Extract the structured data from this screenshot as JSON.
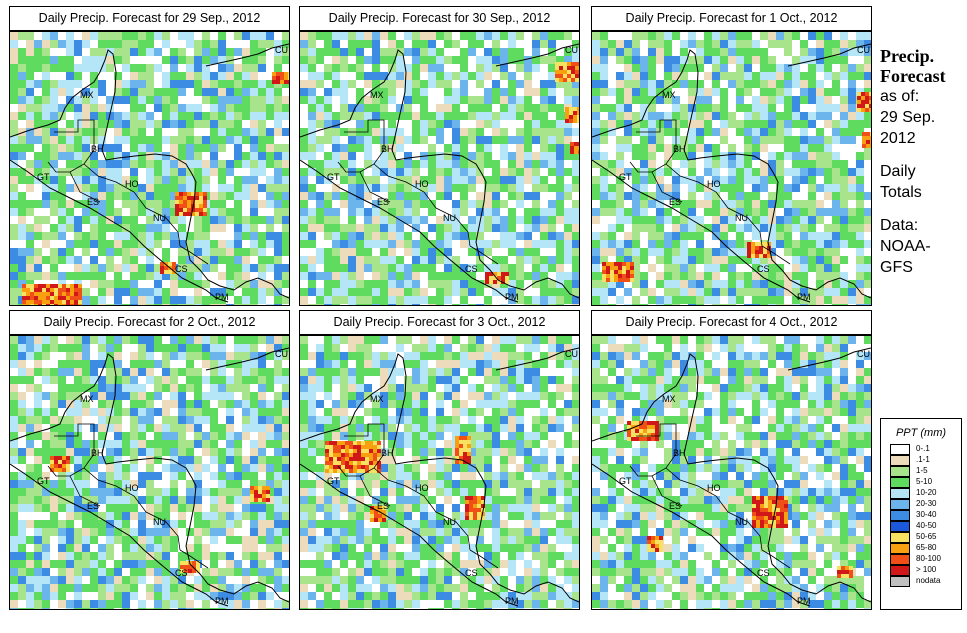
{
  "panels": [
    {
      "title": "Daily Precip. Forecast for  29 Sep., 2012",
      "seed": 11,
      "hot": [
        [
          12,
          252,
          60,
          40
        ],
        [
          150,
          230,
          16,
          12
        ],
        [
          262,
          40,
          18,
          10
        ],
        [
          165,
          160,
          30,
          22
        ]
      ]
    },
    {
      "title": "Daily Precip. Forecast for  30 Sep., 2012",
      "seed": 23,
      "hot": [
        [
          265,
          75,
          20,
          14
        ],
        [
          270,
          110,
          14,
          12
        ],
        [
          185,
          240,
          22,
          12
        ],
        [
          255,
          30,
          22,
          18
        ]
      ]
    },
    {
      "title": "Daily Precip. Forecast for  1 Oct., 2012",
      "seed": 37,
      "hot": [
        [
          10,
          230,
          30,
          20
        ],
        [
          155,
          210,
          22,
          16
        ],
        [
          265,
          60,
          14,
          18
        ],
        [
          270,
          100,
          12,
          14
        ]
      ]
    },
    {
      "title": "Daily Precip. Forecast for  2 Oct., 2012",
      "seed": 41,
      "hot": [
        [
          40,
          120,
          20,
          14
        ],
        [
          170,
          225,
          18,
          12
        ],
        [
          240,
          150,
          18,
          14
        ]
      ]
    },
    {
      "title": "Daily Precip. Forecast for  3 Oct., 2012",
      "seed": 53,
      "hot": [
        [
          25,
          105,
          55,
          30
        ],
        [
          155,
          100,
          16,
          26
        ],
        [
          165,
          160,
          18,
          24
        ],
        [
          70,
          170,
          16,
          14
        ]
      ]
    },
    {
      "title": "Daily Precip. Forecast for  4 Oct., 2012",
      "seed": 67,
      "hot": [
        [
          35,
          85,
          30,
          20
        ],
        [
          160,
          160,
          36,
          30
        ],
        [
          55,
          200,
          16,
          14
        ],
        [
          245,
          230,
          14,
          12
        ]
      ]
    }
  ],
  "map_labels": [
    {
      "code": "MX",
      "name": "country-label-mx"
    },
    {
      "code": "BH",
      "name": "country-label-bh"
    },
    {
      "code": "GT",
      "name": "country-label-gt"
    },
    {
      "code": "HO",
      "name": "country-label-ho"
    },
    {
      "code": "ES",
      "name": "country-label-es"
    },
    {
      "code": "NU",
      "name": "country-label-nu"
    },
    {
      "code": "CS",
      "name": "country-label-cs"
    },
    {
      "code": "PM",
      "name": "country-label-pm"
    },
    {
      "code": "CU",
      "name": "country-label-cu"
    }
  ],
  "side": {
    "heading_line1": "Precip.",
    "heading_line2": "Forecast",
    "asof": "as of:",
    "date1": "29 Sep.",
    "date2": "2012",
    "daily": "Daily",
    "totals": "Totals",
    "data_label": "Data:",
    "data_src1": "NOAA-",
    "data_src2": "GFS"
  },
  "legend": {
    "title": "PPT (mm)",
    "items": [
      {
        "label": "0-.1",
        "color": "#ffffff"
      },
      {
        "label": ".1-1",
        "color": "#ecdcbc"
      },
      {
        "label": "1-5",
        "color": "#a8e48c"
      },
      {
        "label": "5-10",
        "color": "#5fdc5f"
      },
      {
        "label": "10-20",
        "color": "#b4e6f7"
      },
      {
        "label": "20-30",
        "color": "#6cb4ec"
      },
      {
        "label": "30-40",
        "color": "#3c8ce4"
      },
      {
        "label": "40-50",
        "color": "#1c58dc"
      },
      {
        "label": "50-65",
        "color": "#f8e060"
      },
      {
        "label": "65-80",
        "color": "#f8a010"
      },
      {
        "label": "80-100",
        "color": "#f05018"
      },
      {
        "label": "> 100",
        "color": "#d01818"
      },
      {
        "label": "nodata",
        "color": "#c0c0c0"
      }
    ]
  }
}
